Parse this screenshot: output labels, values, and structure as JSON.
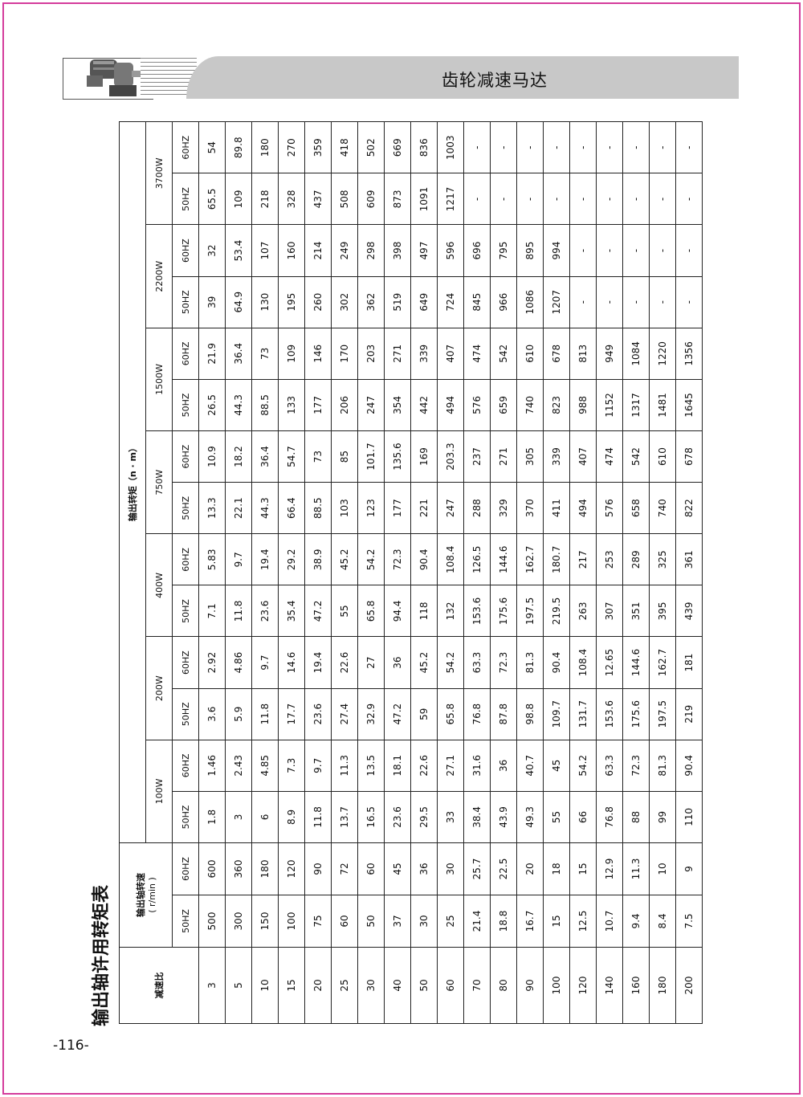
{
  "header": {
    "title": "齿轮减速马达"
  },
  "page": {
    "title": "输出轴许用转矩表",
    "number": "-116-"
  },
  "table": {
    "ratio_label": "减速比",
    "speed_label": "输出轴转速",
    "speed_unit": "( r/min )",
    "torque_label": "输出转矩（n · m）",
    "freqs": [
      "50HZ",
      "60HZ"
    ],
    "powers": [
      "100W",
      "200W",
      "400W",
      "750W",
      "1500W",
      "2200W",
      "3700W"
    ],
    "rows": [
      [
        "3",
        "500",
        "600",
        "1.8",
        "1.46",
        "3.6",
        "2.92",
        "7.1",
        "5.83",
        "13.3",
        "10.9",
        "26.5",
        "21.9",
        "39",
        "32",
        "65.5",
        "54"
      ],
      [
        "5",
        "300",
        "360",
        "3",
        "2.43",
        "5.9",
        "4.86",
        "11.8",
        "9.7",
        "22.1",
        "18.2",
        "44.3",
        "36.4",
        "64.9",
        "53.4",
        "109",
        "89.8"
      ],
      [
        "10",
        "150",
        "180",
        "6",
        "4.85",
        "11.8",
        "9.7",
        "23.6",
        "19.4",
        "44.3",
        "36.4",
        "88.5",
        "73",
        "130",
        "107",
        "218",
        "180"
      ],
      [
        "15",
        "100",
        "120",
        "8.9",
        "7.3",
        "17.7",
        "14.6",
        "35.4",
        "29.2",
        "66.4",
        "54.7",
        "133",
        "109",
        "195",
        "160",
        "328",
        "270"
      ],
      [
        "20",
        "75",
        "90",
        "11.8",
        "9.7",
        "23.6",
        "19.4",
        "47.2",
        "38.9",
        "88.5",
        "73",
        "177",
        "146",
        "260",
        "214",
        "437",
        "359"
      ],
      [
        "25",
        "60",
        "72",
        "13.7",
        "11.3",
        "27.4",
        "22.6",
        "55",
        "45.2",
        "103",
        "85",
        "206",
        "170",
        "302",
        "249",
        "508",
        "418"
      ],
      [
        "30",
        "50",
        "60",
        "16.5",
        "13.5",
        "32.9",
        "27",
        "65.8",
        "54.2",
        "123",
        "101.7",
        "247",
        "203",
        "362",
        "298",
        "609",
        "502"
      ],
      [
        "40",
        "37",
        "45",
        "23.6",
        "18.1",
        "47.2",
        "36",
        "94.4",
        "72.3",
        "177",
        "135.6",
        "354",
        "271",
        "519",
        "398",
        "873",
        "669"
      ],
      [
        "50",
        "30",
        "36",
        "29.5",
        "22.6",
        "59",
        "45.2",
        "118",
        "90.4",
        "221",
        "169",
        "442",
        "339",
        "649",
        "497",
        "1091",
        "836"
      ],
      [
        "60",
        "25",
        "30",
        "33",
        "27.1",
        "65.8",
        "54.2",
        "132",
        "108.4",
        "247",
        "203.3",
        "494",
        "407",
        "724",
        "596",
        "1217",
        "1003"
      ],
      [
        "70",
        "21.4",
        "25.7",
        "38.4",
        "31.6",
        "76.8",
        "63.3",
        "153.6",
        "126.5",
        "288",
        "237",
        "576",
        "474",
        "845",
        "696",
        "-",
        "-"
      ],
      [
        "80",
        "18.8",
        "22.5",
        "43.9",
        "36",
        "87.8",
        "72.3",
        "175.6",
        "144.6",
        "329",
        "271",
        "659",
        "542",
        "966",
        "795",
        "-",
        "-"
      ],
      [
        "90",
        "16.7",
        "20",
        "49.3",
        "40.7",
        "98.8",
        "81.3",
        "197.5",
        "162.7",
        "370",
        "305",
        "740",
        "610",
        "1086",
        "895",
        "-",
        "-"
      ],
      [
        "100",
        "15",
        "18",
        "55",
        "45",
        "109.7",
        "90.4",
        "219.5",
        "180.7",
        "411",
        "339",
        "823",
        "678",
        "1207",
        "994",
        "-",
        "-"
      ],
      [
        "120",
        "12.5",
        "15",
        "66",
        "54.2",
        "131.7",
        "108.4",
        "263",
        "217",
        "494",
        "407",
        "988",
        "813",
        "-",
        "-",
        "-",
        "-"
      ],
      [
        "140",
        "10.7",
        "12.9",
        "76.8",
        "63.3",
        "153.6",
        "12.65",
        "307",
        "253",
        "576",
        "474",
        "1152",
        "949",
        "-",
        "-",
        "-",
        "-"
      ],
      [
        "160",
        "9.4",
        "11.3",
        "88",
        "72.3",
        "175.6",
        "144.6",
        "351",
        "289",
        "658",
        "542",
        "1317",
        "1084",
        "-",
        "-",
        "-",
        "-"
      ],
      [
        "180",
        "8.4",
        "10",
        "99",
        "81.3",
        "197.5",
        "162.7",
        "395",
        "325",
        "740",
        "610",
        "1481",
        "1220",
        "-",
        "-",
        "-",
        "-"
      ],
      [
        "200",
        "7.5",
        "9",
        "110",
        "90.4",
        "219",
        "181",
        "439",
        "361",
        "822",
        "678",
        "1645",
        "1356",
        "-",
        "-",
        "-",
        "-"
      ]
    ]
  },
  "colors": {
    "border": "#d43c9c",
    "banner": "#c8c8c8"
  },
  "icons": {
    "banner_image": "gear-motor-icon"
  }
}
